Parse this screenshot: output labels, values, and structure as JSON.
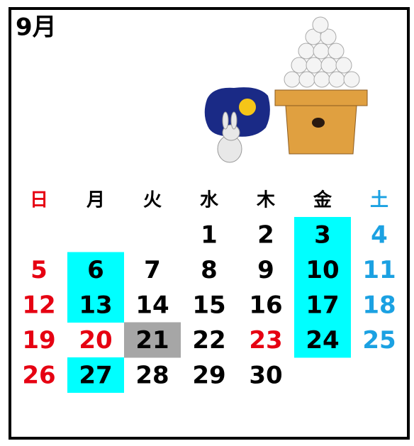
{
  "title": "9月",
  "weekdays": [
    {
      "label": "日",
      "color": "#e60012"
    },
    {
      "label": "月",
      "color": "#000000"
    },
    {
      "label": "火",
      "color": "#000000"
    },
    {
      "label": "水",
      "color": "#000000"
    },
    {
      "label": "木",
      "color": "#000000"
    },
    {
      "label": "金",
      "color": "#000000"
    },
    {
      "label": "土",
      "color": "#1ba1e2"
    }
  ],
  "weeks": [
    [
      null,
      null,
      null,
      {
        "day": 1,
        "color": "#000000"
      },
      {
        "day": 2,
        "color": "#000000"
      },
      {
        "day": 3,
        "color": "#000000",
        "bg": "#00ffff"
      },
      {
        "day": 4,
        "color": "#1ba1e2"
      }
    ],
    [
      {
        "day": 5,
        "color": "#e60012"
      },
      {
        "day": 6,
        "color": "#000000",
        "bg": "#00ffff"
      },
      {
        "day": 7,
        "color": "#000000"
      },
      {
        "day": 8,
        "color": "#000000"
      },
      {
        "day": 9,
        "color": "#000000"
      },
      {
        "day": 10,
        "color": "#000000",
        "bg": "#00ffff"
      },
      {
        "day": 11,
        "color": "#1ba1e2"
      }
    ],
    [
      {
        "day": 12,
        "color": "#e60012"
      },
      {
        "day": 13,
        "color": "#000000",
        "bg": "#00ffff"
      },
      {
        "day": 14,
        "color": "#000000"
      },
      {
        "day": 15,
        "color": "#000000"
      },
      {
        "day": 16,
        "color": "#000000"
      },
      {
        "day": 17,
        "color": "#000000",
        "bg": "#00ffff"
      },
      {
        "day": 18,
        "color": "#1ba1e2"
      }
    ],
    [
      {
        "day": 19,
        "color": "#e60012"
      },
      {
        "day": 20,
        "color": "#e60012"
      },
      {
        "day": 21,
        "color": "#000000",
        "bg": "#a6a6a6"
      },
      {
        "day": 22,
        "color": "#000000"
      },
      {
        "day": 23,
        "color": "#e60012"
      },
      {
        "day": 24,
        "color": "#000000",
        "bg": "#00ffff"
      },
      {
        "day": 25,
        "color": "#1ba1e2"
      }
    ],
    [
      {
        "day": 26,
        "color": "#e60012"
      },
      {
        "day": 27,
        "color": "#000000",
        "bg": "#00ffff"
      },
      {
        "day": 28,
        "color": "#000000"
      },
      {
        "day": 29,
        "color": "#000000"
      },
      {
        "day": 30,
        "color": "#000000"
      },
      null,
      null
    ]
  ]
}
